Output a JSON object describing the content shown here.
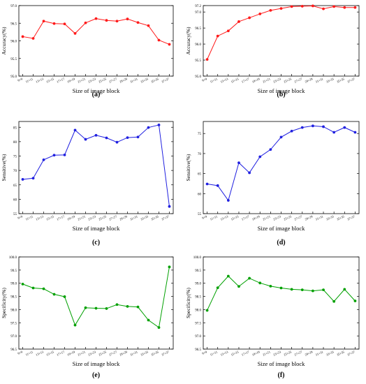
{
  "colors": {
    "red": "#ff1a1a",
    "blue": "#2020e0",
    "green": "#00a000",
    "axis": "#000000"
  },
  "chart_data": [
    {
      "type": "line",
      "panel_label": "(a)",
      "xlabel": "Size of image block",
      "ylabel": "Accuracy(%)",
      "color": "red",
      "ylim": [
        95.0,
        97.0
      ],
      "yticks": [
        "95.0",
        "95.5",
        "96.0",
        "96.5",
        "97.0"
      ],
      "categories": [
        "9×9",
        "11×11",
        "13×13",
        "15×15",
        "17×17",
        "19×19",
        "21×21",
        "23×23",
        "25×25",
        "27×27",
        "29×29",
        "31×31",
        "33×33",
        "35×35",
        "37×37"
      ],
      "values": [
        96.12,
        96.07,
        96.56,
        96.49,
        96.48,
        96.21,
        96.51,
        96.63,
        96.58,
        96.56,
        96.62,
        96.52,
        96.43,
        96.02,
        95.9
      ]
    },
    {
      "type": "line",
      "panel_label": "(b)",
      "xlabel": "Size of image block",
      "ylabel": "Accuracy(%)",
      "color": "red",
      "ylim": [
        95.0,
        97.2
      ],
      "yticks": [
        "95.0",
        "95.5",
        "96.0",
        "96.5",
        "97.0",
        "97.2"
      ],
      "categories": [
        "9×9",
        "11×11",
        "13×13",
        "15×15",
        "17×17",
        "19×19",
        "21×21",
        "23×23",
        "25×25",
        "27×27",
        "29×29",
        "31×31",
        "33×33",
        "35×35",
        "37×37"
      ],
      "values": [
        95.52,
        96.25,
        96.41,
        96.7,
        96.82,
        96.94,
        97.05,
        97.11,
        97.17,
        97.18,
        97.19,
        97.1,
        97.17,
        97.14,
        97.14
      ]
    },
    {
      "type": "line",
      "panel_label": "(c)",
      "xlabel": "Size of image block",
      "ylabel": "Sensitive(%)",
      "color": "blue",
      "ylim": [
        55,
        87
      ],
      "yticks": [
        "55",
        "60",
        "65",
        "70",
        "75",
        "80",
        "85"
      ],
      "categories": [
        "9×9",
        "11×11",
        "13×13",
        "15×15",
        "17×17",
        "19×19",
        "21×21",
        "23×23",
        "25×25",
        "27×27",
        "29×29",
        "31×31",
        "33×33",
        "35×35",
        "37×37"
      ],
      "values": [
        66.9,
        67.3,
        73.7,
        75.3,
        75.4,
        84.0,
        80.8,
        82.2,
        81.3,
        79.8,
        81.4,
        81.6,
        84.9,
        85.8,
        57.5
      ]
    },
    {
      "type": "line",
      "panel_label": "(d)",
      "xlabel": "Size of image block",
      "ylabel": "Sensitive(%)",
      "color": "blue",
      "ylim": [
        55,
        78
      ],
      "yticks": [
        "55",
        "60",
        "65",
        "70",
        "75"
      ],
      "categories": [
        "9×9",
        "11×11",
        "13×13",
        "15×15",
        "17×17",
        "19×19",
        "21×21",
        "23×23",
        "25×25",
        "27×27",
        "29×29",
        "31×31",
        "33×33",
        "35×35",
        "37×37"
      ],
      "values": [
        62.4,
        62.0,
        58.3,
        67.7,
        65.2,
        69.2,
        71.0,
        74.1,
        75.6,
        76.5,
        76.9,
        76.7,
        75.3,
        76.5,
        75.3
      ]
    },
    {
      "type": "line",
      "panel_label": "(e)",
      "xlabel": "Size of image block",
      "ylabel": "Specificity(%)",
      "color": "green",
      "ylim": [
        96.5,
        100.0
      ],
      "yticks": [
        "96.5",
        "97.0",
        "97.5",
        "98.0",
        "98.5",
        "99.0",
        "99.5",
        "100.0"
      ],
      "categories": [
        "9×9",
        "11×11",
        "13×13",
        "15×15",
        "17×17",
        "19×19",
        "21×21",
        "23×23",
        "25×25",
        "27×27",
        "29×29",
        "31×31",
        "33×33",
        "35×35",
        "37×37"
      ],
      "values": [
        98.97,
        98.82,
        98.79,
        98.58,
        98.49,
        97.41,
        98.07,
        98.05,
        98.04,
        98.19,
        98.12,
        98.1,
        97.6,
        97.32,
        99.62
      ]
    },
    {
      "type": "line",
      "panel_label": "(f)",
      "xlabel": "Size of image block",
      "ylabel": "Specificity(%)",
      "color": "green",
      "ylim": [
        96.5,
        100.0
      ],
      "yticks": [
        "96.5",
        "97.0",
        "97.5",
        "98.0",
        "98.5",
        "99.0",
        "99.5",
        "100.0"
      ],
      "categories": [
        "9×9",
        "11×11",
        "13×13",
        "15×15",
        "17×17",
        "19×19",
        "21×21",
        "23×23",
        "25×25",
        "27×27",
        "29×29",
        "31×31",
        "33×33",
        "35×35",
        "37×37"
      ],
      "values": [
        97.97,
        98.83,
        99.27,
        98.88,
        99.19,
        99.01,
        98.89,
        98.82,
        98.77,
        98.75,
        98.71,
        98.75,
        98.31,
        98.77,
        98.33
      ]
    }
  ]
}
